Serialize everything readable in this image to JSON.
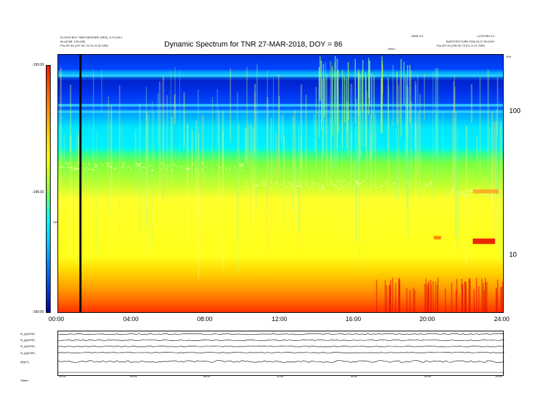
{
  "header": {
    "title": "Dynamic Spectrum for TNR 27-MAR-2018, DOY = 86",
    "left_line1": "01.03.00 BCC TNR/TNR3/TNR2 (RES), 3.7/4.0/4.0",
    "left_line2": "Ab  (49.58, 0.00.000)",
    "left_start": "Pos    257.81 (247.45,-70.72) 11.25 GSE)",
    "right_line1": "WIND 3.0",
    "right_line2": "L1/STCBV 4.0",
    "right_line3": "BURST/PICTURE 2018-03-27 00:00:00",
    "right_end": "Pos    257.24 (245.39,-72.57) 11.21 GSE)",
    "center_note": "SPEC"
  },
  "colorbar": {
    "label": "TNR",
    "top_tick": "-130.00",
    "mid_tick": "-145.00",
    "bottom_tick": "-160.00"
  },
  "chart_data": [
    {
      "type": "heatmap",
      "title": "Dynamic Spectrum for TNR 27-MAR-2018, DOY = 86",
      "x_tick_labels": [
        "00:00",
        "04:00",
        "08:00",
        "12:00",
        "16:00",
        "20:00",
        "24:00"
      ],
      "x_range_hours": [
        0,
        24
      ],
      "y_scale": "log",
      "y_tick_labels": [
        "10",
        "100"
      ],
      "y_top_label": "kHz",
      "y_range_khz": [
        4,
        256
      ],
      "color_range": [
        -160,
        -130
      ],
      "colorbar_ticks": [
        -130,
        -145,
        -160
      ],
      "marker_vertical_line_hour": 1.2,
      "colors": {
        "low_freq_intense": "#ff3a00",
        "mid_band": "#ffff2a",
        "upper_band": "#00e6ff",
        "top_band": "#0033dd",
        "red_patch": "#e80000"
      }
    },
    {
      "type": "line",
      "series_labels": [
        "B_{x}(GSE)",
        "B_{y}(GSE)",
        "B_{z}(GSE)",
        "N_{p}(GSE)",
        "|B|(nT)",
        "Status"
      ],
      "x_tick_labels": [
        "00:00",
        "04:00",
        "08:00",
        "12:00",
        "16:00",
        "20:00",
        "24:00"
      ]
    }
  ]
}
